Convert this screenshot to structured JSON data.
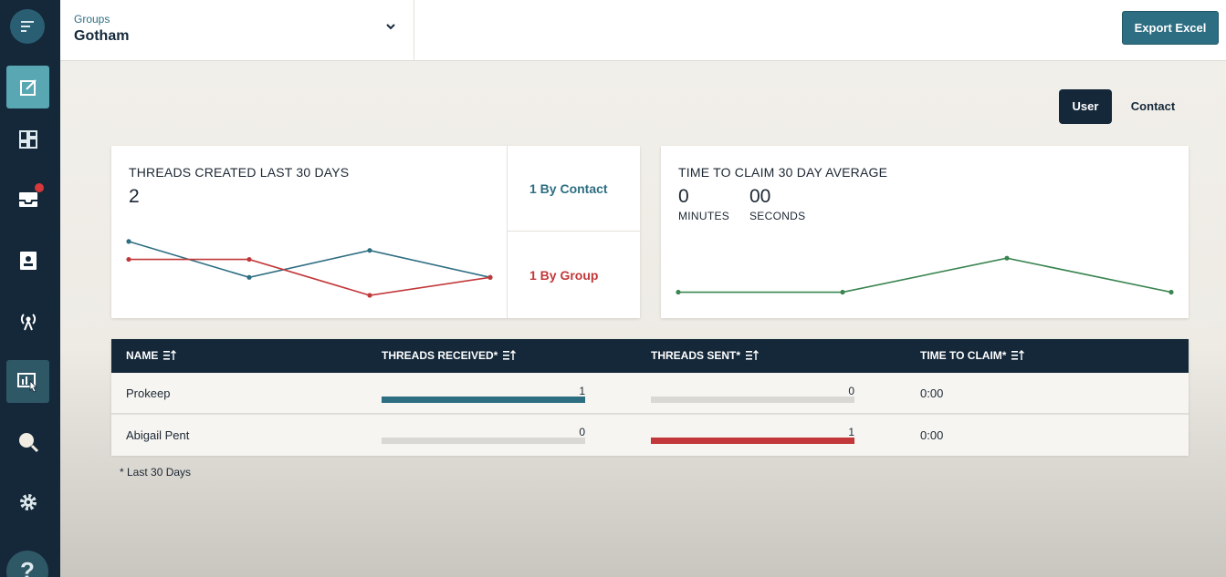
{
  "sidebar": {
    "items": [
      {
        "icon": "compose-icon",
        "active": true
      },
      {
        "icon": "dashboard-icon"
      },
      {
        "icon": "inbox-icon",
        "badge": true
      },
      {
        "icon": "contacts-icon"
      },
      {
        "icon": "broadcast-icon"
      },
      {
        "icon": "reports-icon",
        "hover": true
      },
      {
        "icon": "search-icon"
      },
      {
        "icon": "settings-icon"
      }
    ],
    "help_label": "?"
  },
  "header": {
    "group_label": "Groups",
    "group_value": "Gotham",
    "export_label": "Export Excel"
  },
  "toggle": {
    "user": "User",
    "contact": "Contact",
    "selected": "User"
  },
  "threads_card": {
    "title": "THREADS CREATED  LAST 30 DAYS",
    "value": "2",
    "by_contact": "1 By Contact",
    "by_group": "1 By Group"
  },
  "claim_card": {
    "title": "TIME TO CLAIM  30 DAY AVERAGE",
    "minutes_value": "0",
    "minutes_label": "MINUTES",
    "seconds_value": "00",
    "seconds_label": "SECONDS"
  },
  "table": {
    "headers": {
      "name": "NAME",
      "received": "THREADS RECEIVED*",
      "sent": "THREADS SENT*",
      "time": "TIME TO CLAIM*"
    },
    "rows": [
      {
        "name": "Prokeep",
        "received": "1",
        "received_fraction": 1,
        "sent": "0",
        "sent_fraction": 0,
        "time": "0:00"
      },
      {
        "name": "Abigail Pent",
        "received": "0",
        "received_fraction": 0,
        "sent": "1",
        "sent_fraction": 1,
        "time": "0:00"
      }
    ]
  },
  "footnote": "* Last 30 Days",
  "colors": {
    "sidebar_bg": "#14283a",
    "accent_teal": "#2e6e82",
    "red": "#c2383a",
    "green": "#3a8550"
  },
  "chart_data": [
    {
      "type": "line",
      "x": [
        1,
        2,
        3,
        4
      ],
      "series": [
        {
          "values": [
            3,
            1,
            2.5,
            1
          ],
          "color": "#2e6e82"
        },
        {
          "values": [
            2,
            2,
            0,
            1
          ],
          "color": "#c2383a"
        }
      ],
      "ylim": [
        0,
        3.5
      ],
      "grid": false,
      "legend": false
    },
    {
      "type": "line",
      "x": [
        1,
        2,
        3,
        4
      ],
      "series": [
        {
          "values": [
            0,
            0,
            1,
            0
          ],
          "color": "#3a8550"
        }
      ],
      "ylim": [
        -0.2,
        1.3
      ],
      "grid": false,
      "legend": false
    }
  ]
}
